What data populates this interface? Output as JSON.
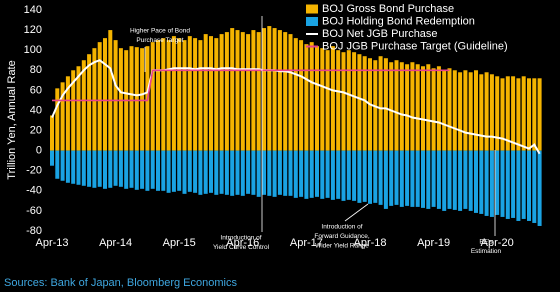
{
  "chart_data": {
    "type": "bar",
    "y_label": "Trillion Yen, Annual Rate",
    "source": "Sources: Bank of Japan, Bloomberg Economics",
    "categories": [
      "Apr-13",
      null,
      null,
      null,
      null,
      null,
      null,
      null,
      null,
      null,
      null,
      null,
      "Apr-14",
      null,
      null,
      null,
      null,
      null,
      null,
      null,
      null,
      null,
      null,
      null,
      "Apr-15",
      null,
      null,
      null,
      null,
      null,
      null,
      null,
      null,
      null,
      null,
      null,
      "Apr-16",
      null,
      null,
      null,
      null,
      null,
      null,
      null,
      null,
      null,
      null,
      null,
      "Apr-17",
      null,
      null,
      null,
      null,
      null,
      null,
      null,
      null,
      null,
      null,
      null,
      "Apr-18",
      null,
      null,
      null,
      null,
      null,
      null,
      null,
      null,
      null,
      null,
      null,
      "Apr-19",
      null,
      null,
      null,
      null,
      null,
      null,
      null,
      null,
      null,
      null,
      null,
      "Apr-20",
      null,
      null,
      null,
      null,
      null,
      null,
      null,
      null
    ],
    "series": [
      {
        "name": "BOJ Gross Bond Purchase",
        "color": "#f5b400",
        "kind": "bar",
        "values": [
          35,
          62,
          68,
          74,
          80,
          84,
          90,
          96,
          102,
          108,
          112,
          120,
          110,
          102,
          100,
          104,
          103,
          102,
          104,
          108,
          110,
          112,
          110,
          114,
          112,
          110,
          114,
          112,
          110,
          116,
          114,
          112,
          116,
          118,
          122,
          120,
          118,
          116,
          120,
          118,
          122,
          124,
          122,
          120,
          118,
          116,
          112,
          110,
          106,
          108,
          104,
          102,
          100,
          104,
          100,
          98,
          100,
          98,
          96,
          94,
          92,
          90,
          94,
          92,
          88,
          90,
          88,
          86,
          88,
          86,
          84,
          86,
          82,
          84,
          80,
          82,
          80,
          78,
          80,
          78,
          80,
          76,
          78,
          76,
          74,
          72,
          74,
          74,
          72,
          74,
          72,
          72,
          72
        ]
      },
      {
        "name": "BOJ Holding Bond Redemption",
        "color": "#1aa3e3",
        "kind": "bar",
        "values": [
          -15,
          -28,
          -30,
          -32,
          -33,
          -34,
          -35,
          -36,
          -37,
          -36,
          -38,
          -37,
          -35,
          -36,
          -38,
          -37,
          -39,
          -38,
          -40,
          -38,
          -40,
          -40,
          -42,
          -41,
          -40,
          -43,
          -41,
          -42,
          -44,
          -43,
          -42,
          -44,
          -43,
          -44,
          -45,
          -44,
          -45,
          -43,
          -44,
          -46,
          -44,
          -45,
          -46,
          -44,
          -45,
          -45,
          -47,
          -46,
          -48,
          -47,
          -46,
          -48,
          -47,
          -49,
          -48,
          -50,
          -49,
          -50,
          -52,
          -51,
          -53,
          -52,
          -54,
          -58,
          -55,
          -54,
          -56,
          -55,
          -56,
          -56,
          -57,
          -58,
          -56,
          -58,
          -60,
          -58,
          -59,
          -60,
          -58,
          -60,
          -62,
          -63,
          -65,
          -66,
          -64,
          -66,
          -68,
          -67,
          -70,
          -68,
          -70,
          -72,
          -75
        ]
      },
      {
        "name": "BOJ Net JGB Purchase",
        "color": "#ffffff",
        "kind": "line",
        "values": [
          33,
          45,
          55,
          62,
          68,
          74,
          80,
          85,
          88,
          90,
          86,
          82,
          65,
          58,
          57,
          56,
          55,
          56,
          58,
          80,
          80,
          80,
          81,
          82,
          82,
          82,
          82,
          81,
          82,
          82,
          82,
          81,
          82,
          82,
          82,
          81,
          81,
          81,
          81,
          81,
          80,
          80,
          80,
          79,
          79,
          78,
          76,
          74,
          71,
          68,
          66,
          64,
          62,
          60,
          59,
          58,
          56,
          54,
          52,
          50,
          46,
          44,
          42,
          42,
          40,
          38,
          36,
          35,
          33,
          32,
          31,
          30,
          29,
          28,
          26,
          24,
          22,
          20,
          18,
          17,
          16,
          15,
          14,
          14,
          13,
          12,
          10,
          8,
          6,
          4,
          2,
          6,
          -3
        ]
      },
      {
        "name": "BOJ JGB Purchase Target (Guideline)",
        "color": "#e8418a",
        "kind": "line",
        "values": [
          50,
          50,
          50,
          50,
          50,
          50,
          50,
          50,
          50,
          50,
          50,
          50,
          50,
          50,
          50,
          50,
          50,
          50,
          50,
          80,
          80,
          80,
          80,
          80,
          80,
          80,
          80,
          80,
          80,
          80,
          80,
          80,
          80,
          80,
          80,
          80,
          80,
          80,
          80,
          80,
          80,
          80,
          80,
          80,
          80,
          80,
          80,
          80,
          80,
          80,
          80,
          80,
          80,
          80,
          80,
          80,
          80,
          80,
          80,
          80,
          80,
          80,
          80,
          80,
          80,
          80,
          80,
          80,
          80,
          80,
          80,
          80,
          80,
          80,
          80,
          80,
          null,
          null,
          null,
          null,
          null,
          null,
          null,
          null,
          null,
          null,
          null,
          null,
          null,
          null,
          null,
          null,
          null
        ]
      }
    ],
    "annotations": [
      {
        "lines": [
          "Higher Pace of Bond",
          "Purchase Target"
        ]
      },
      {
        "lines": [
          "Introduction of",
          "Yield Curve Control"
        ]
      },
      {
        "lines": [
          "Introduction of",
          "Forward Guidance,",
          "Wider Yield Range"
        ]
      },
      {
        "lines": [
          "BE's",
          "Estimation"
        ]
      }
    ],
    "ylim": [
      -80,
      140
    ],
    "yticks": [
      -80,
      -60,
      -40,
      -20,
      0,
      20,
      40,
      60,
      80,
      100,
      120,
      140
    ],
    "grid": false
  }
}
